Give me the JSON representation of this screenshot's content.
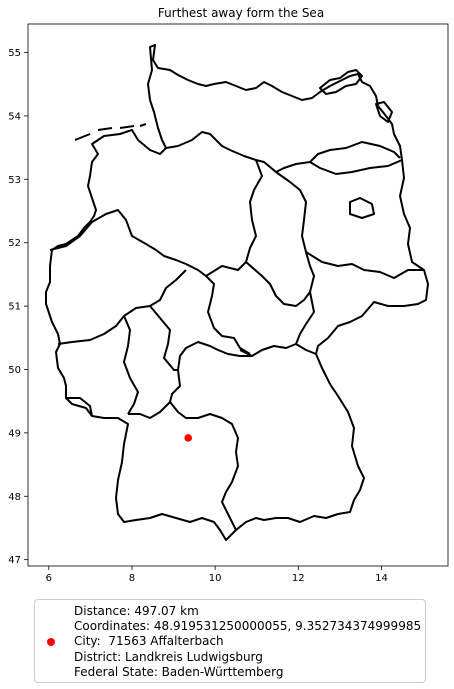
{
  "map": {
    "title": "Furthest away form the Sea",
    "x_ticks": [
      "6",
      "8",
      "10",
      "12",
      "14"
    ],
    "y_ticks": [
      "47",
      "48",
      "49",
      "50",
      "51",
      "52",
      "53",
      "54",
      "55"
    ],
    "x_range": [
      5.5,
      15.6
    ],
    "y_range": [
      46.9,
      55.45
    ],
    "marker": {
      "lon": 9.352734374999985,
      "lat": 48.919531250000055,
      "color": "#ff0000"
    },
    "border_color": "#000000"
  },
  "legend": {
    "line1": "Distance: 497.07 km",
    "line2": "Coordinates: 48.919531250000055, 9.352734374999985",
    "line3": "City:  71563 Affalterbach",
    "line4": "District: Landkreis Ludwigsburg",
    "line5": "Federal State: Baden-Württemberg"
  }
}
